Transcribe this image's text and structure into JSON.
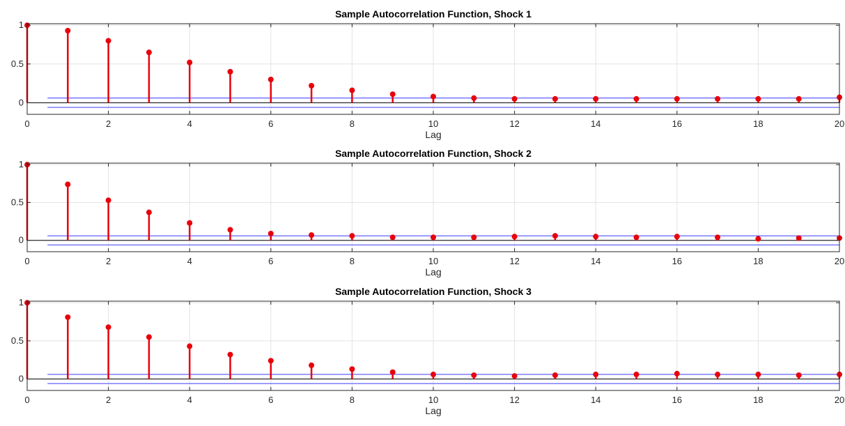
{
  "chart_data": [
    {
      "type": "stem",
      "title": "Sample Autocorrelation Function, Shock 1",
      "xlabel": "Lag",
      "ylabel": "",
      "xlim": [
        0,
        20
      ],
      "ylim": [
        -0.15,
        1.02
      ],
      "xticks": [
        0,
        2,
        4,
        6,
        8,
        10,
        12,
        14,
        16,
        18,
        20
      ],
      "yticks": [
        0,
        0.5,
        1
      ],
      "grid": true,
      "x": [
        0,
        1,
        2,
        3,
        4,
        5,
        6,
        7,
        8,
        9,
        10,
        11,
        12,
        13,
        14,
        15,
        16,
        17,
        18,
        19,
        20
      ],
      "values": [
        1.0,
        0.93,
        0.8,
        0.65,
        0.52,
        0.4,
        0.3,
        0.22,
        0.16,
        0.11,
        0.08,
        0.06,
        0.05,
        0.05,
        0.05,
        0.05,
        0.05,
        0.05,
        0.05,
        0.05,
        0.07
      ],
      "bounds": {
        "upper": 0.06,
        "lower": -0.06,
        "x_start": 0.5,
        "x_end": 20
      },
      "stem_color": "#e8000b",
      "bound_color": "#3a3aff"
    },
    {
      "type": "stem",
      "title": "Sample Autocorrelation Function, Shock 2",
      "xlabel": "Lag",
      "ylabel": "",
      "xlim": [
        0,
        20
      ],
      "ylim": [
        -0.15,
        1.02
      ],
      "xticks": [
        0,
        2,
        4,
        6,
        8,
        10,
        12,
        14,
        16,
        18,
        20
      ],
      "yticks": [
        0,
        0.5,
        1
      ],
      "grid": true,
      "x": [
        0,
        1,
        2,
        3,
        4,
        5,
        6,
        7,
        8,
        9,
        10,
        11,
        12,
        13,
        14,
        15,
        16,
        17,
        18,
        19,
        20
      ],
      "values": [
        1.0,
        0.74,
        0.53,
        0.37,
        0.23,
        0.14,
        0.09,
        0.07,
        0.06,
        0.04,
        0.04,
        0.04,
        0.05,
        0.06,
        0.05,
        0.04,
        0.05,
        0.04,
        0.02,
        0.03,
        0.03
      ],
      "bounds": {
        "upper": 0.06,
        "lower": -0.06,
        "x_start": 0.5,
        "x_end": 20
      },
      "stem_color": "#e8000b",
      "bound_color": "#3a3aff"
    },
    {
      "type": "stem",
      "title": "Sample Autocorrelation Function, Shock 3",
      "xlabel": "Lag",
      "ylabel": "",
      "xlim": [
        0,
        20
      ],
      "ylim": [
        -0.15,
        1.02
      ],
      "xticks": [
        0,
        2,
        4,
        6,
        8,
        10,
        12,
        14,
        16,
        18,
        20
      ],
      "yticks": [
        0,
        0.5,
        1
      ],
      "grid": true,
      "x": [
        0,
        1,
        2,
        3,
        4,
        5,
        6,
        7,
        8,
        9,
        10,
        11,
        12,
        13,
        14,
        15,
        16,
        17,
        18,
        19,
        20
      ],
      "values": [
        1.0,
        0.81,
        0.68,
        0.55,
        0.43,
        0.32,
        0.24,
        0.18,
        0.13,
        0.09,
        0.06,
        0.05,
        0.04,
        0.05,
        0.06,
        0.06,
        0.07,
        0.06,
        0.06,
        0.05,
        0.06
      ],
      "bounds": {
        "upper": 0.06,
        "lower": -0.06,
        "x_start": 0.5,
        "x_end": 20
      },
      "stem_color": "#e8000b",
      "bound_color": "#3a3aff"
    }
  ]
}
